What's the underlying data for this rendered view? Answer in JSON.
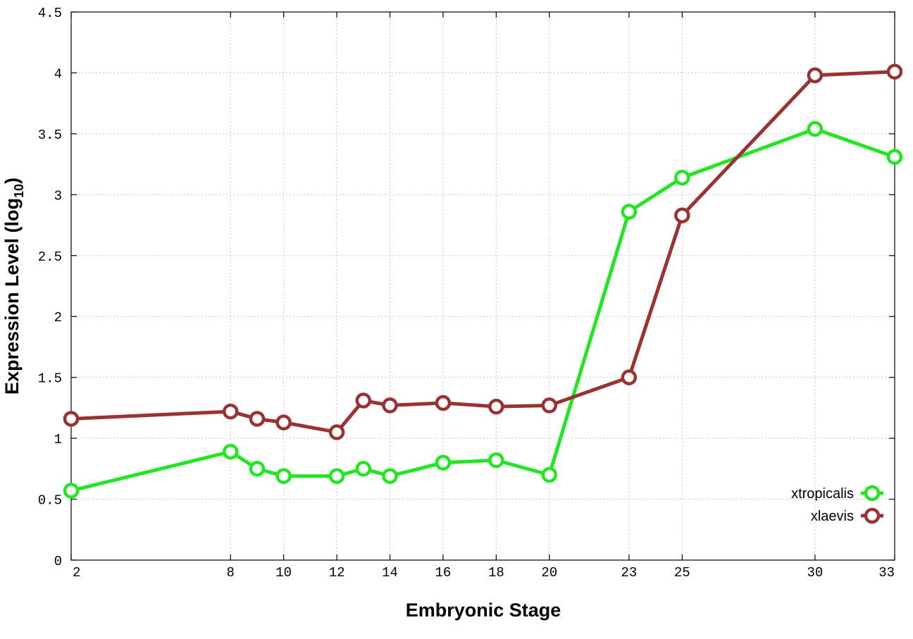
{
  "chart_data": {
    "type": "line",
    "title": "",
    "xlabel": "Embryonic Stage",
    "ylabel_main": "Expression Level (log",
    "ylabel_sub": "10",
    "ylabel_close": ")",
    "xlim": [
      2,
      33
    ],
    "ylim": [
      0,
      4.5
    ],
    "x_ticks": [
      2,
      8,
      10,
      12,
      14,
      16,
      18,
      20,
      23,
      25,
      30,
      33
    ],
    "x_tick_labels": [
      "2",
      "8",
      "10",
      "12",
      "14",
      "16",
      "18",
      "20",
      "23",
      "25",
      "30",
      "33"
    ],
    "y_ticks": [
      0,
      0.5,
      1,
      1.5,
      2,
      2.5,
      3,
      3.5,
      4,
      4.5
    ],
    "y_tick_labels": [
      "0",
      "0.5",
      "1",
      "1.5",
      "2",
      "2.5",
      "3",
      "3.5",
      "4",
      "4.5"
    ],
    "grid": true,
    "legend_position": "bottom-right",
    "x": [
      2,
      8,
      9,
      10,
      12,
      13,
      14,
      16,
      18,
      20,
      23,
      25,
      30,
      33
    ],
    "series": [
      {
        "name": "xtropicalis",
        "color": "#22e622",
        "values": [
          0.57,
          0.89,
          0.75,
          0.69,
          0.69,
          0.75,
          0.69,
          0.8,
          0.82,
          0.7,
          2.86,
          3.14,
          3.54,
          3.31
        ]
      },
      {
        "name": "xlaevis",
        "color": "#993333",
        "values": [
          1.16,
          1.22,
          1.16,
          1.13,
          1.05,
          1.31,
          1.27,
          1.29,
          1.26,
          1.27,
          1.5,
          2.83,
          3.98,
          4.01
        ]
      }
    ]
  }
}
